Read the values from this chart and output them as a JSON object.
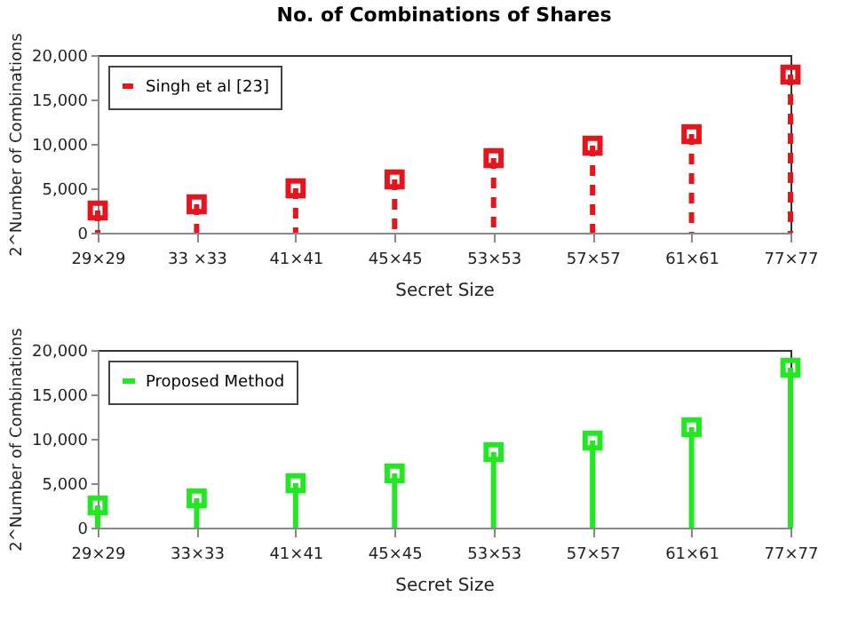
{
  "chart_data": [
    {
      "type": "lollipop",
      "title": "No. of Combinations of Shares",
      "categories": [
        "29×29",
        "33 ×33",
        "41×41",
        "45×45",
        "53×53",
        "57×57",
        "61×61",
        "77×77"
      ],
      "series": [
        {
          "name": "Singh et al [23]",
          "color": "#e8141c",
          "values": [
            2500,
            3200,
            5000,
            6000,
            8400,
            9800,
            11100,
            17800
          ]
        }
      ],
      "xlabel": "Secret Size",
      "ylabel": "2^Number of Combinations",
      "ylim": [
        0,
        20000
      ],
      "yticks": [
        0,
        {
          "value": 5000,
          "label": "5,000"
        },
        {
          "value": 10000,
          "label": "10,000"
        },
        {
          "value": 15000,
          "label": "15,000"
        },
        {
          "value": 20000,
          "label": "20,000"
        }
      ],
      "legend": "top left",
      "marker": "square",
      "line_style": "dashed",
      "grid": false
    },
    {
      "type": "lollipop",
      "categories": [
        "29×29",
        "33×33",
        "41×41",
        "45×45",
        "53×53",
        "57×57",
        "61×61",
        "77×77"
      ],
      "series": [
        {
          "name": "Proposed Method",
          "color": "#22e822",
          "values": [
            2500,
            3300,
            5000,
            6100,
            8500,
            9800,
            11300,
            18000
          ]
        }
      ],
      "xlabel": "Secret Size",
      "ylabel": "2^Number of Combinations",
      "ylim": [
        0,
        20000
      ],
      "yticks": [
        0,
        {
          "value": 5000,
          "label": "5,000"
        },
        {
          "value": 10000,
          "label": "10,000"
        },
        {
          "value": 15000,
          "label": "15,000"
        },
        {
          "value": 20000,
          "label": "20,000"
        }
      ],
      "legend": "top left",
      "marker": "square",
      "line_style": "solid",
      "grid": false
    }
  ]
}
